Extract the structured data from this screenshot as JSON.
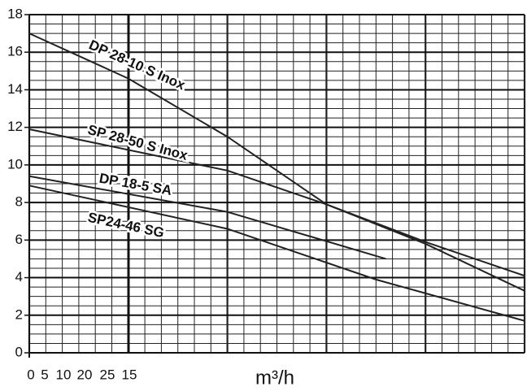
{
  "chart_data": {
    "type": "line",
    "x_label": "m³/h",
    "x_tick_labels": [
      "0",
      "5",
      "10",
      "20",
      "25",
      "15"
    ],
    "xlim": [
      0,
      30
    ],
    "ylim": [
      0,
      18
    ],
    "yticks": [
      0,
      2,
      4,
      6,
      8,
      10,
      12,
      14,
      16,
      18
    ],
    "grid": true,
    "series": [
      {
        "name": "DP 28-10 S Inox",
        "color": "#222222",
        "x": [
          0,
          6,
          12,
          18,
          24,
          30
        ],
        "values": [
          17,
          14.6,
          11.5,
          7.9,
          5.8,
          3.3
        ]
      },
      {
        "name": "SP 28-50 S Inox",
        "color": "#222222",
        "x": [
          0,
          12,
          18,
          24,
          30
        ],
        "values": [
          11.9,
          9.7,
          7.9,
          5.9,
          4.1
        ]
      },
      {
        "name": "DP 18-5 SA",
        "color": "#222222",
        "x": [
          0,
          12,
          21.6
        ],
        "values": [
          9.4,
          7.5,
          5.0
        ]
      },
      {
        "name": "SP24-46 SG",
        "color": "#222222",
        "x": [
          0,
          12,
          21,
          30
        ],
        "values": [
          8.9,
          6.6,
          3.9,
          1.7
        ]
      }
    ]
  }
}
